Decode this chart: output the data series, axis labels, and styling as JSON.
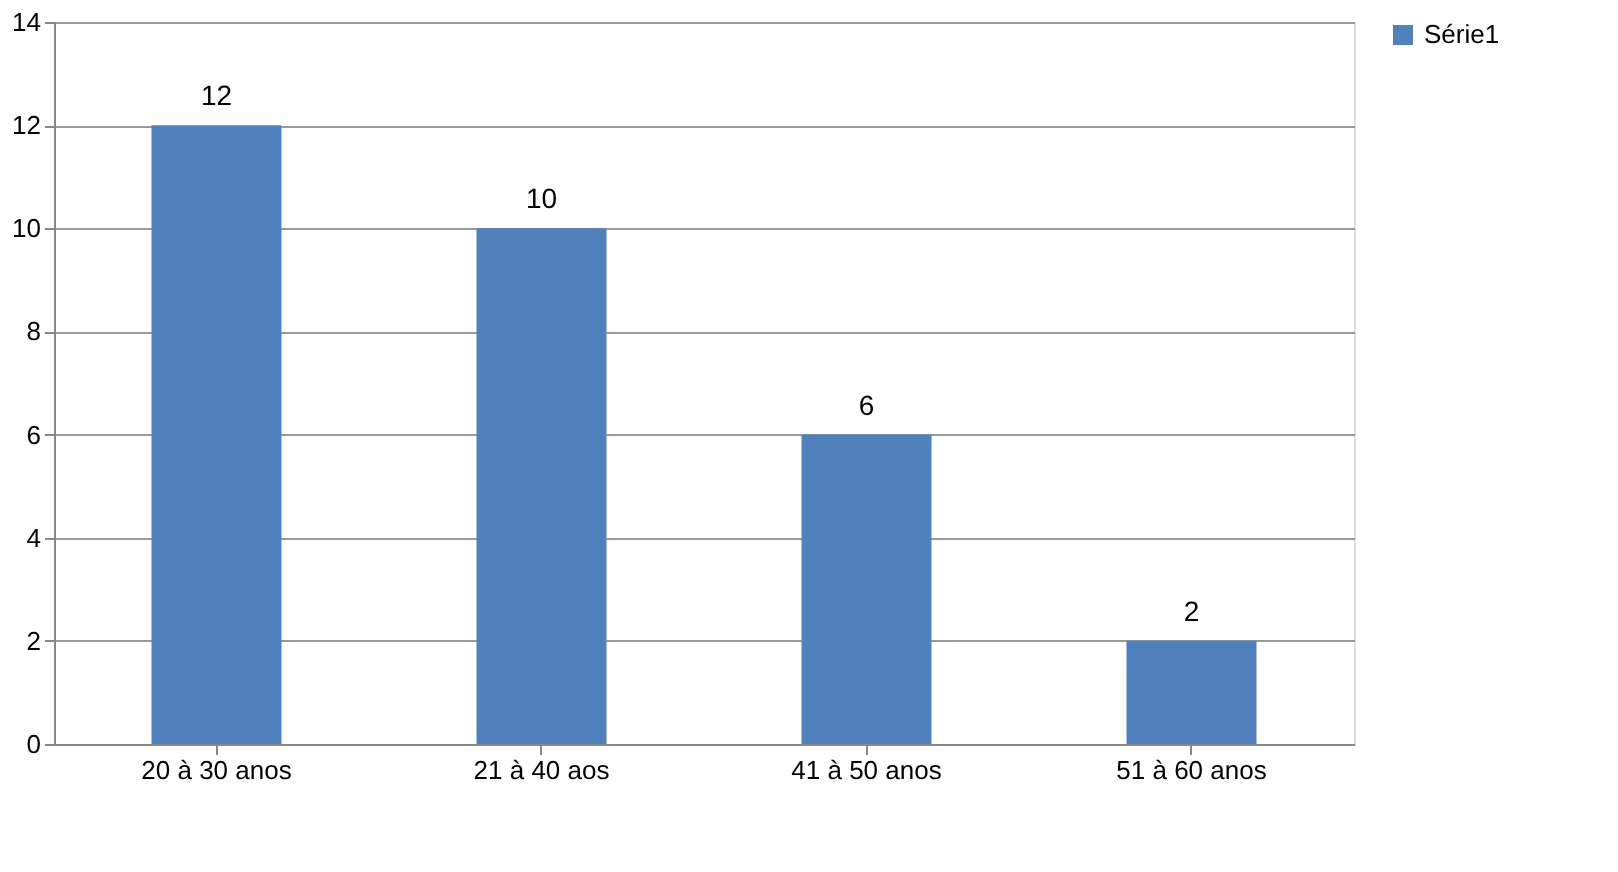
{
  "chart_data": {
    "type": "bar",
    "categories": [
      "20 à 30 anos",
      "21 à 40 aos",
      "41 à 50 anos",
      "51 à 60 anos"
    ],
    "series": [
      {
        "name": "Série1",
        "color": "#4f81bd",
        "values": [
          12,
          10,
          6,
          2
        ]
      }
    ],
    "ylim": [
      0,
      14
    ],
    "yticks": [
      0,
      2,
      4,
      6,
      8,
      10,
      12,
      14
    ],
    "grid": "y",
    "legend": "right",
    "data_labels": true
  }
}
